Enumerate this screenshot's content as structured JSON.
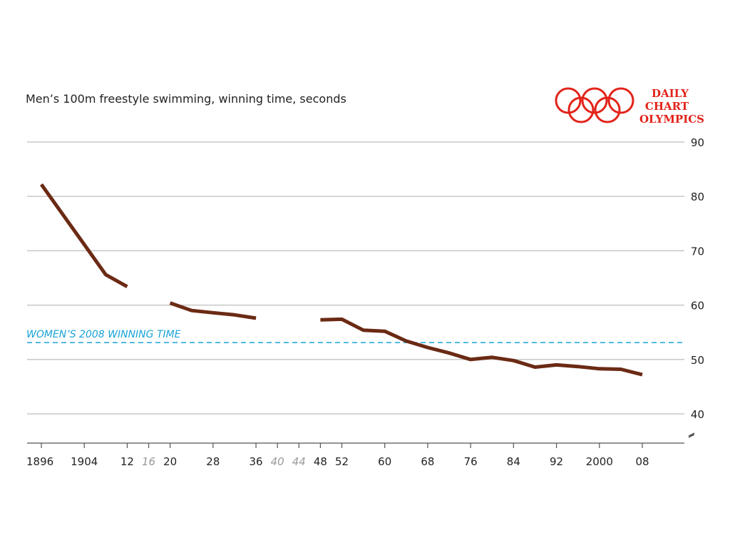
{
  "chart_data": {
    "type": "line",
    "title": "",
    "subtitle": "Men’s 100m freestyle swimming, winning time, seconds",
    "ylabel": "",
    "xlabel": "",
    "ylim": [
      40,
      90
    ],
    "yticks": [
      40,
      50,
      60,
      70,
      80,
      90
    ],
    "y_axis_side": "right",
    "y_axis_break": true,
    "grid": true,
    "x_ticks": [
      {
        "year": 1896,
        "label": "1896",
        "muted": false
      },
      {
        "year": 1904,
        "label": "1904",
        "muted": false
      },
      {
        "year": 1912,
        "label": "12",
        "muted": false
      },
      {
        "year": 1916,
        "label": "16",
        "muted": true
      },
      {
        "year": 1920,
        "label": "20",
        "muted": false
      },
      {
        "year": 1928,
        "label": "28",
        "muted": false
      },
      {
        "year": 1936,
        "label": "36",
        "muted": false
      },
      {
        "year": 1940,
        "label": "40",
        "muted": true
      },
      {
        "year": 1944,
        "label": "44",
        "muted": true
      },
      {
        "year": 1948,
        "label": "48",
        "muted": false
      },
      {
        "year": 1952,
        "label": "52",
        "muted": false
      },
      {
        "year": 1960,
        "label": "60",
        "muted": false
      },
      {
        "year": 1968,
        "label": "68",
        "muted": false
      },
      {
        "year": 1976,
        "label": "76",
        "muted": false
      },
      {
        "year": 1984,
        "label": "84",
        "muted": false
      },
      {
        "year": 1992,
        "label": "92",
        "muted": false
      },
      {
        "year": 2000,
        "label": "2000",
        "muted": false
      },
      {
        "year": 2008,
        "label": "08",
        "muted": false
      }
    ],
    "series": [
      {
        "color": "#6b2a14",
        "segments": [
          [
            [
              1896,
              82.2
            ],
            [
              1908,
              65.6
            ],
            [
              1912,
              63.4
            ]
          ],
          [
            [
              1920,
              60.4
            ],
            [
              1924,
              59.0
            ],
            [
              1928,
              58.6
            ],
            [
              1932,
              58.2
            ],
            [
              1936,
              57.6
            ]
          ],
          [
            [
              1948,
              57.3
            ],
            [
              1952,
              57.4
            ],
            [
              1956,
              55.4
            ],
            [
              1960,
              55.2
            ],
            [
              1964,
              53.4
            ],
            [
              1968,
              52.2
            ],
            [
              1972,
              51.2
            ],
            [
              1976,
              50.0
            ],
            [
              1980,
              50.4
            ],
            [
              1984,
              49.8
            ],
            [
              1988,
              48.6
            ],
            [
              1992,
              49.0
            ],
            [
              1996,
              48.7
            ],
            [
              2000,
              48.3
            ],
            [
              2004,
              48.2
            ],
            [
              2008,
              47.2
            ]
          ]
        ]
      }
    ],
    "reference_line": {
      "label": "WOMEN’S 2008 WINNING TIME",
      "value": 53.1,
      "color": "#1aa3d6",
      "style": "dashed"
    }
  },
  "branding": {
    "lines": [
      "DAILY",
      "CHART",
      "OLYMPICS"
    ],
    "color": "#e2231a",
    "logo_icon": "olympic-rings-icon"
  },
  "colors": {
    "gridline": "#c8c8c8",
    "axis": "#555555",
    "text": "#222222",
    "muted_text": "#9a9a9a"
  }
}
